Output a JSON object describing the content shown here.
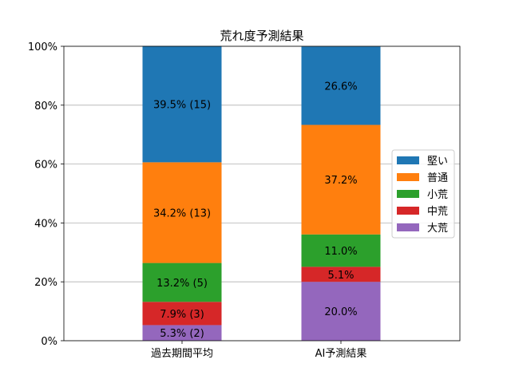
{
  "chart_data": {
    "type": "bar",
    "stacked": true,
    "title": "荒れ度予測結果",
    "xlabel": "",
    "ylabel": "",
    "ylim": [
      0,
      100
    ],
    "yticks": [
      "0%",
      "20%",
      "40%",
      "60%",
      "80%",
      "100%"
    ],
    "grid": "horizontal",
    "legend_position": "center-right",
    "categories": [
      "過去期間平均",
      "AI予測結果"
    ],
    "series": [
      {
        "name": "大荒",
        "color": "#9467bd",
        "values": [
          5.3,
          20.0
        ],
        "labels": [
          "5.3% (2)",
          "20.0%"
        ]
      },
      {
        "name": "中荒",
        "color": "#d62728",
        "values": [
          7.9,
          5.1
        ],
        "labels": [
          "7.9% (3)",
          "5.1%"
        ]
      },
      {
        "name": "小荒",
        "color": "#2ca02c",
        "values": [
          13.2,
          11.0
        ],
        "labels": [
          "13.2% (5)",
          "11.0%"
        ]
      },
      {
        "name": "普通",
        "color": "#ff7f0e",
        "values": [
          34.2,
          37.2
        ],
        "labels": [
          "34.2% (13)",
          "37.2%"
        ]
      },
      {
        "name": "堅い",
        "color": "#1f77b4",
        "values": [
          39.5,
          26.6
        ],
        "labels": [
          "39.5% (15)",
          "26.6%"
        ]
      }
    ],
    "legend_order": [
      "堅い",
      "普通",
      "小荒",
      "中荒",
      "大荒"
    ]
  }
}
